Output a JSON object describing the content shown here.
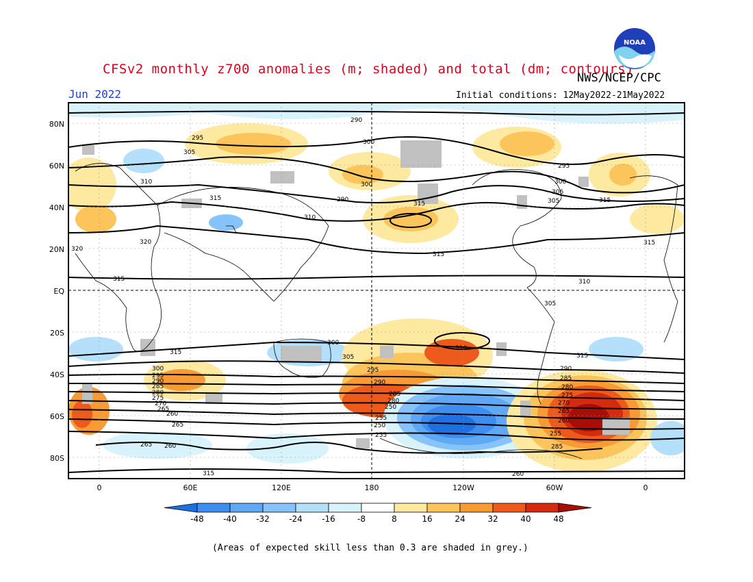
{
  "header": {
    "title": "CFSv2 monthly z700 anomalies (m; shaded) and total (dm; contours)",
    "agency": "NWS/NCEP/CPC",
    "month": "Jun 2022",
    "initial_conditions": "Initial conditions: 12May2022-21May2022",
    "logo_text": "NOAA"
  },
  "map": {
    "lat_labels": [
      "80N",
      "60N",
      "40N",
      "20N",
      "EQ",
      "20S",
      "40S",
      "60S",
      "80S"
    ],
    "lon_labels": [
      "0",
      "60E",
      "120E",
      "180",
      "120W",
      "60W",
      "0"
    ],
    "contour_labels": [
      "290",
      "295",
      "300",
      "305",
      "310",
      "315",
      "320",
      "310",
      "305",
      "300",
      "295",
      "290",
      "285",
      "280",
      "275",
      "270",
      "265",
      "260",
      "255",
      "250",
      "300",
      "306",
      "315",
      "315",
      "320",
      "315",
      "315",
      "315",
      "310",
      "305",
      "300",
      "295",
      "290",
      "285",
      "280",
      "275",
      "270",
      "265",
      "260",
      "265",
      "260",
      "265",
      "255",
      "250",
      "280",
      "285",
      "290",
      "295",
      "300",
      "305",
      "310",
      "315",
      "285",
      "260",
      "265"
    ],
    "grey_note": "skill-masked regions"
  },
  "colorbar": {
    "tick_labels": [
      "-48",
      "-40",
      "-32",
      "-24",
      "-16",
      "-8",
      "8",
      "16",
      "24",
      "32",
      "40",
      "48"
    ],
    "colors": [
      "#1e6fe0",
      "#3d8ef0",
      "#5ea8f5",
      "#86c3fa",
      "#b4e0fb",
      "#d8f3fb",
      "#ffffff",
      "#fde9a0",
      "#fcc55c",
      "#f89b35",
      "#ee5a1c",
      "#d42a10",
      "#a80e08"
    ]
  },
  "footer": {
    "note": "(Areas of expected skill less than 0.3 are shaded in grey.)"
  }
}
